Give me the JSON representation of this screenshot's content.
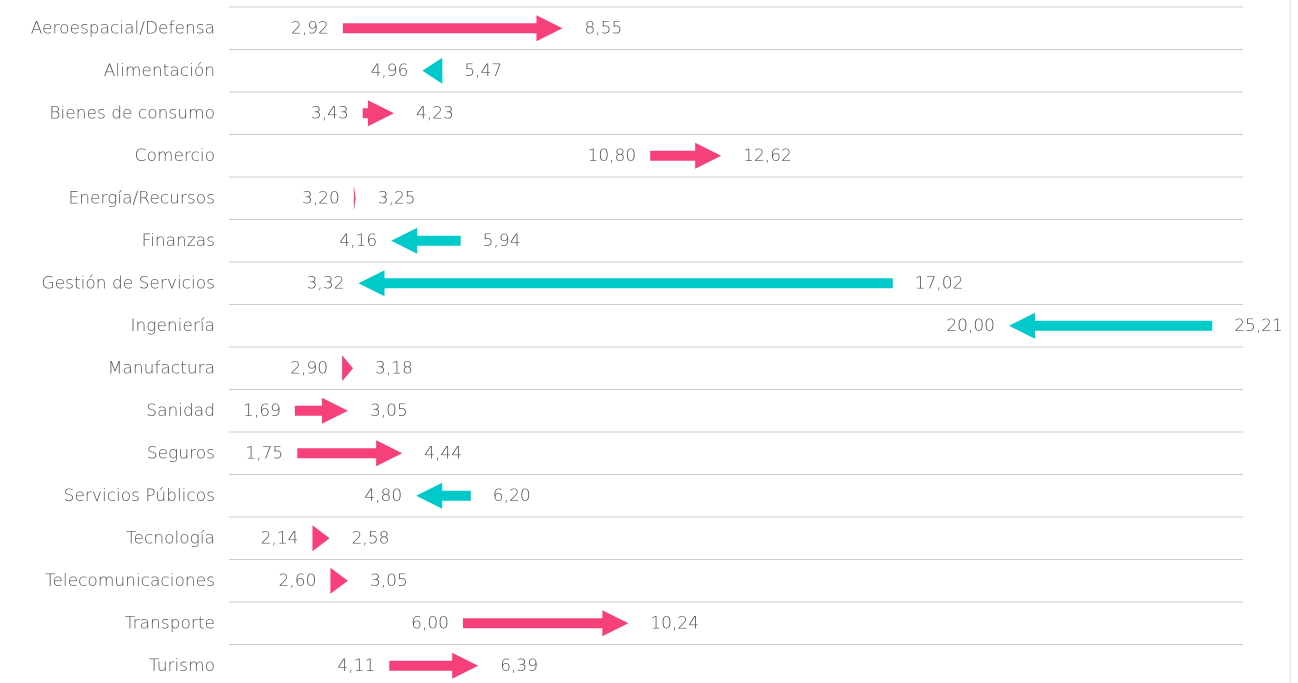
{
  "chart_data": {
    "type": "arrow",
    "categories": [
      "Aeroespacial/Defensa",
      "Alimentación",
      "Bienes de consumo",
      "Comercio",
      "Energía/Recursos",
      "Finanzas",
      "Gestión de Servicios",
      "Ingeniería",
      "Manufactura",
      "Sanidad",
      "Seguros",
      "Servicios Públicos",
      "Tecnología",
      "Telecomunicaciones",
      "Transporte",
      "Turismo"
    ],
    "start_values": [
      2.92,
      5.47,
      3.43,
      10.8,
      3.2,
      5.94,
      17.02,
      25.21,
      2.9,
      1.69,
      1.75,
      6.2,
      2.14,
      2.6,
      6.0,
      4.11
    ],
    "start_value_labels": [
      "2,92",
      "5,47",
      "3,43",
      "10,80",
      "3,20",
      "5,94",
      "17,02",
      "25,21",
      "2,90",
      "1,69",
      "1,75",
      "6,20",
      "2,14",
      "2,60",
      "6,00",
      "4,11"
    ],
    "end_values": [
      8.55,
      4.96,
      4.23,
      12.62,
      3.25,
      4.16,
      3.32,
      20.0,
      3.18,
      3.05,
      4.44,
      4.8,
      2.58,
      3.05,
      10.24,
      6.39
    ],
    "end_value_labels": [
      "8,55",
      "4,96",
      "4,23",
      "12,62",
      "3,25",
      "4,16",
      "3,32",
      "20,00",
      "3,18",
      "3,05",
      "4,44",
      "4,80",
      "2,58",
      "3,05",
      "10,24",
      "6,39"
    ],
    "increase_color": "#f5407a",
    "decrease_color": "#00c9c9",
    "xlim": [
      0,
      26
    ]
  }
}
